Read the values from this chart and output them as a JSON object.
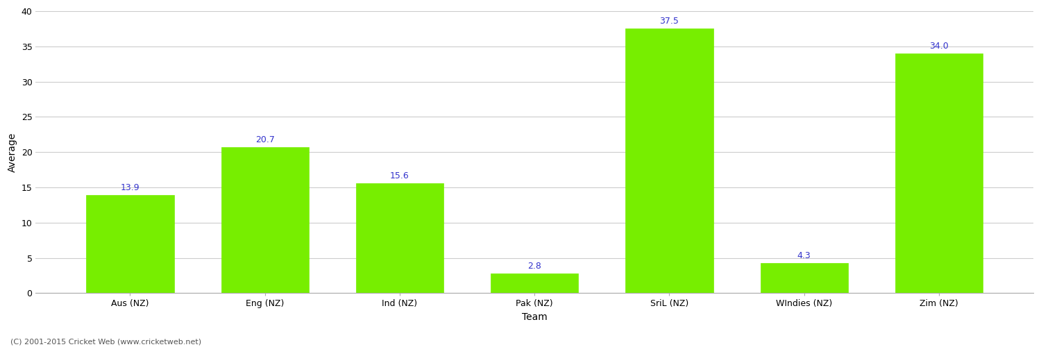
{
  "categories": [
    "Aus (NZ)",
    "Eng (NZ)",
    "Ind (NZ)",
    "Pak (NZ)",
    "SriL (NZ)",
    "WIndies (NZ)",
    "Zim (NZ)"
  ],
  "values": [
    13.9,
    20.7,
    15.6,
    2.8,
    37.5,
    4.3,
    34.0
  ],
  "bar_color": "#77ee00",
  "bar_edge_color": "#77ee00",
  "label_color": "#3333cc",
  "xlabel": "Team",
  "ylabel": "Average",
  "ylim": [
    0,
    40
  ],
  "yticks": [
    0,
    5,
    10,
    15,
    20,
    25,
    30,
    35,
    40
  ],
  "grid_color": "#cccccc",
  "background_color": "#ffffff",
  "label_fontsize": 9,
  "axis_label_fontsize": 10,
  "tick_fontsize": 9,
  "footer_text": "(C) 2001-2015 Cricket Web (www.cricketweb.net)",
  "footer_fontsize": 8,
  "bar_width": 0.65
}
